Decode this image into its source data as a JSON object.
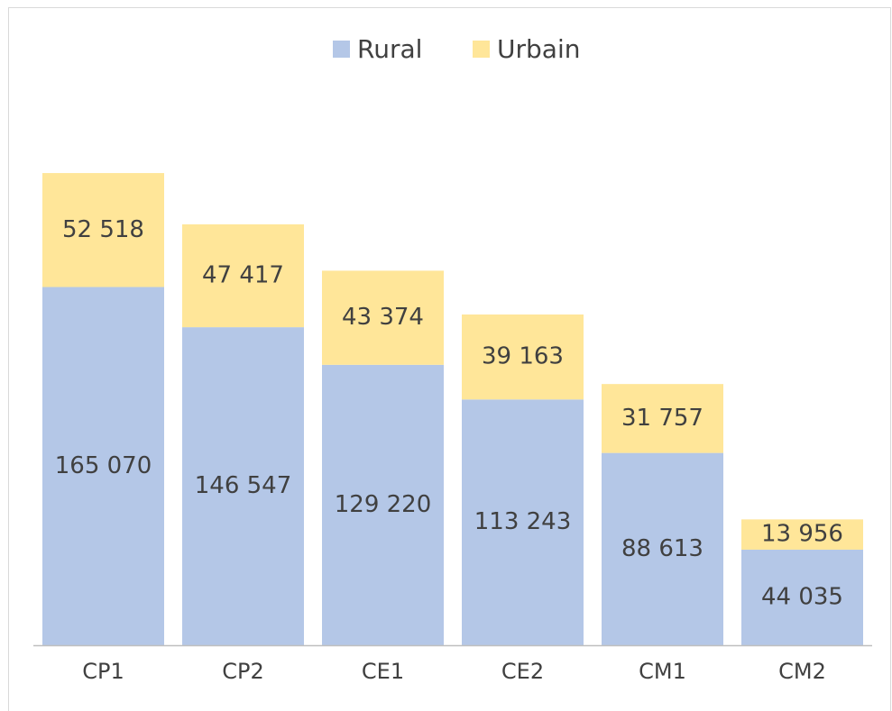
{
  "chart_data": {
    "type": "stacked_bar",
    "categories": [
      "CP1",
      "CP2",
      "CE1",
      "CE2",
      "CM1",
      "CM2"
    ],
    "series": [
      {
        "name": "Rural",
        "color": "#b4c7e7",
        "values": [
          165070,
          146547,
          129220,
          113243,
          88613,
          44035
        ],
        "value_labels": [
          "165 070",
          "146 547",
          "129 220",
          "113 243",
          "88 613",
          "44 035"
        ]
      },
      {
        "name": "Urbain",
        "color": "#ffe699",
        "values": [
          52518,
          47417,
          43374,
          39163,
          31757,
          13956
        ],
        "value_labels": [
          "52 518",
          "47 417",
          "43 374",
          "39 163",
          "31 757",
          "13 956"
        ]
      }
    ],
    "ylim": [
      0,
      250000
    ],
    "legend": "top"
  }
}
